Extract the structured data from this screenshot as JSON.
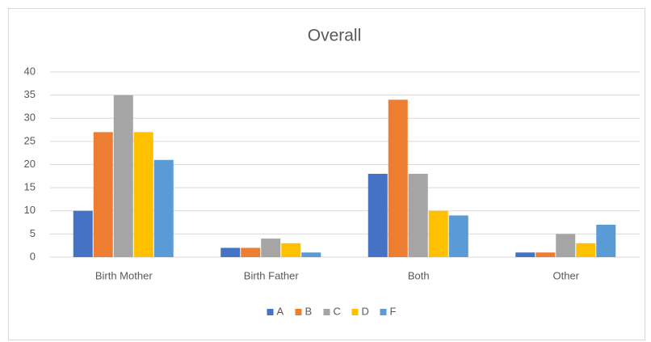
{
  "chart_data": {
    "type": "bar",
    "title": "Overall",
    "categories": [
      "Birth Mother",
      "Birth Father",
      "Both",
      "Other"
    ],
    "series": [
      {
        "name": "A",
        "color": "#4472c4",
        "values": [
          10,
          2,
          18,
          1
        ]
      },
      {
        "name": "B",
        "color": "#ed7d31",
        "values": [
          27,
          2,
          34,
          1
        ]
      },
      {
        "name": "C",
        "color": "#a5a5a5",
        "values": [
          35,
          4,
          18,
          5
        ]
      },
      {
        "name": "D",
        "color": "#ffc000",
        "values": [
          27,
          3,
          10,
          3
        ]
      },
      {
        "name": "F",
        "color": "#5b9bd5",
        "values": [
          21,
          1,
          9,
          7
        ]
      }
    ],
    "ylim": [
      0,
      40
    ],
    "yticks": [
      0,
      5,
      10,
      15,
      20,
      25,
      30,
      35,
      40
    ],
    "grid": true,
    "legend": "bottom"
  }
}
